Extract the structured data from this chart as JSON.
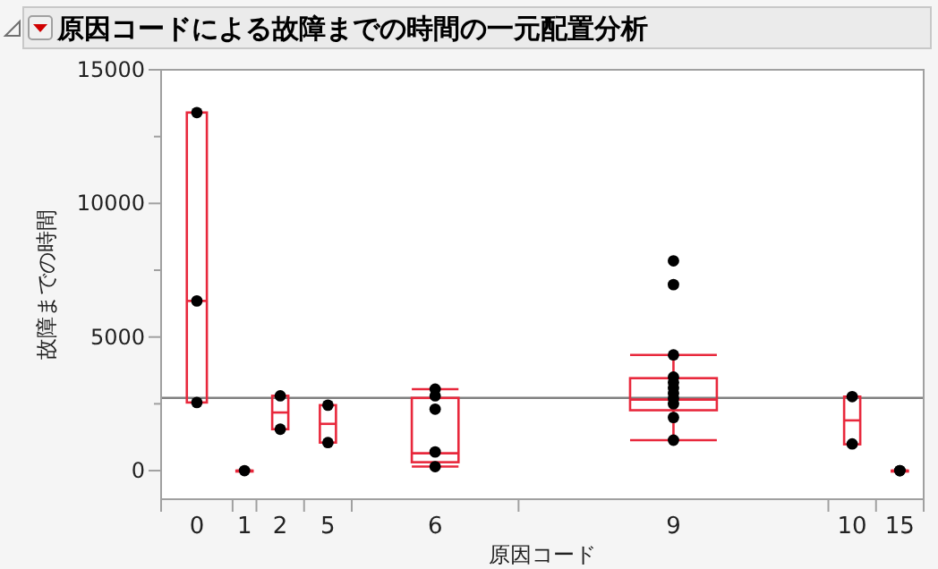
{
  "chart_data": {
    "type": "box",
    "title": "原因コードによる故障までの時間の一元配置分析",
    "xlabel": "原因コード",
    "ylabel": "故障までの時間",
    "categories": [
      "0",
      "1",
      "2",
      "5",
      "6",
      "9",
      "10",
      "15"
    ],
    "ylim": [
      -1070,
      15000
    ],
    "yticks": [
      0,
      {
        "value": 2500,
        "label": null
      },
      5000,
      {
        "value": 7500,
        "label": null
      },
      10000,
      {
        "value": 12500,
        "label": null
      },
      15000
    ],
    "ref_lines": [
      {
        "axis": "y",
        "value": 2720,
        "color": "#808080"
      }
    ],
    "series": [
      {
        "type": "box",
        "color": "#e8283c",
        "boxes": [
          {
            "low": 2550,
            "q1": 2550,
            "median": 6350,
            "q3": 13400,
            "high": 13400
          },
          {
            "low": 0,
            "q1": 0,
            "median": 0,
            "q3": 0,
            "high": 0
          },
          {
            "low": 1550,
            "q1": 1550,
            "median": 2175,
            "q3": 2800,
            "high": 2800
          },
          {
            "low": 1050,
            "q1": 1050,
            "median": 1750,
            "q3": 2450,
            "high": 2450
          },
          {
            "low": 150,
            "q1": 315,
            "median": 650,
            "q3": 2720,
            "high": 3050
          },
          {
            "low": 1140,
            "q1": 2260,
            "median": 2660,
            "q3": 3460,
            "high": 4330
          },
          {
            "low": 985,
            "q1": 985,
            "median": 1880,
            "q3": 2770,
            "high": 2770
          },
          {
            "low": 0,
            "q1": 0,
            "median": 0,
            "q3": 0,
            "high": 0
          }
        ]
      },
      {
        "type": "scatter",
        "color": "#000000",
        "marker": "circle",
        "x": [
          "0",
          "0",
          "0",
          "1",
          "2",
          "2",
          "5",
          "5",
          "6",
          "6",
          "6",
          "6",
          "6",
          "6",
          "6",
          "9",
          "9",
          "9",
          "9",
          "9",
          "9",
          "9",
          "9",
          "9",
          "9",
          "9",
          "9",
          "9",
          "10",
          "10",
          "15",
          "15"
        ],
        "values": [
          13400,
          6350,
          2550,
          0,
          2800,
          1550,
          2450,
          1050,
          3050,
          2800,
          2300,
          700,
          null,
          null,
          150,
          7850,
          6960,
          4330,
          3500,
          3300,
          3100,
          2900,
          2700,
          2500,
          null,
          null,
          1990,
          1140,
          2770,
          1000,
          0,
          0
        ]
      }
    ]
  }
}
